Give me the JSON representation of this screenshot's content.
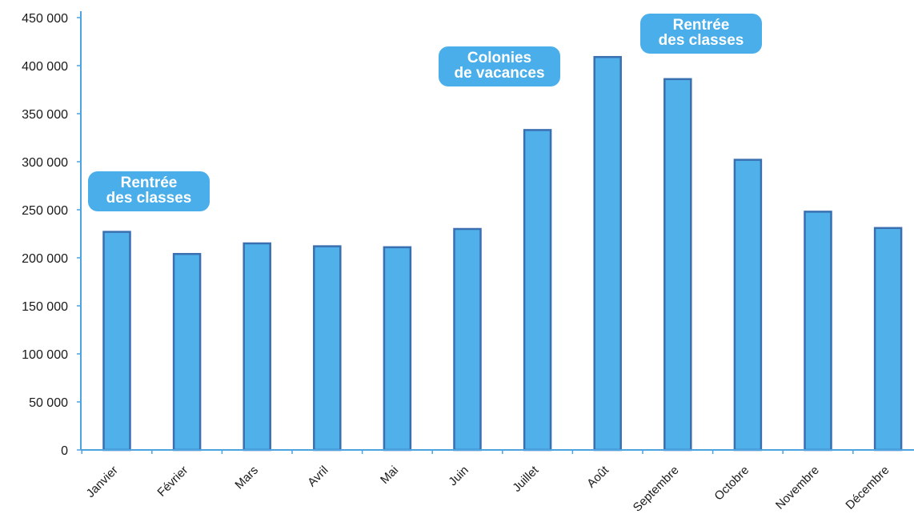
{
  "chart_data": {
    "type": "bar",
    "title": "",
    "xlabel": "",
    "ylabel": "",
    "categories": [
      "Janvier",
      "Février",
      "Mars",
      "Avril",
      "Mai",
      "Juin",
      "Juillet",
      "Août",
      "Septembre",
      "Octobre",
      "Novembre",
      "Décembre"
    ],
    "values": [
      227000,
      204000,
      215000,
      212000,
      211000,
      230000,
      333000,
      409000,
      386000,
      302000,
      248000,
      231000
    ],
    "ylim": [
      0,
      450000
    ],
    "yticks": [
      0,
      50000,
      100000,
      150000,
      200000,
      250000,
      300000,
      350000,
      400000,
      450000
    ],
    "ytick_labels": [
      "0",
      "50 000",
      "100 000",
      "150 000",
      "200 000",
      "250 000",
      "300 000",
      "350 000",
      "400 000",
      "450 000"
    ],
    "grid": false,
    "colors": {
      "bar_fill": "#4fb0ea",
      "bar_edge": "#3a6fb0",
      "axis": "#4da3e0",
      "annotation_bg": "#49aee9"
    },
    "annotations": [
      {
        "category": "Janvier",
        "lines": [
          "Rentrée",
          "des classes"
        ]
      },
      {
        "category": "Juillet",
        "lines": [
          "Colonies",
          "de vacances"
        ]
      },
      {
        "category": "Septembre",
        "lines": [
          "Rentrée",
          "des classes"
        ]
      }
    ]
  }
}
